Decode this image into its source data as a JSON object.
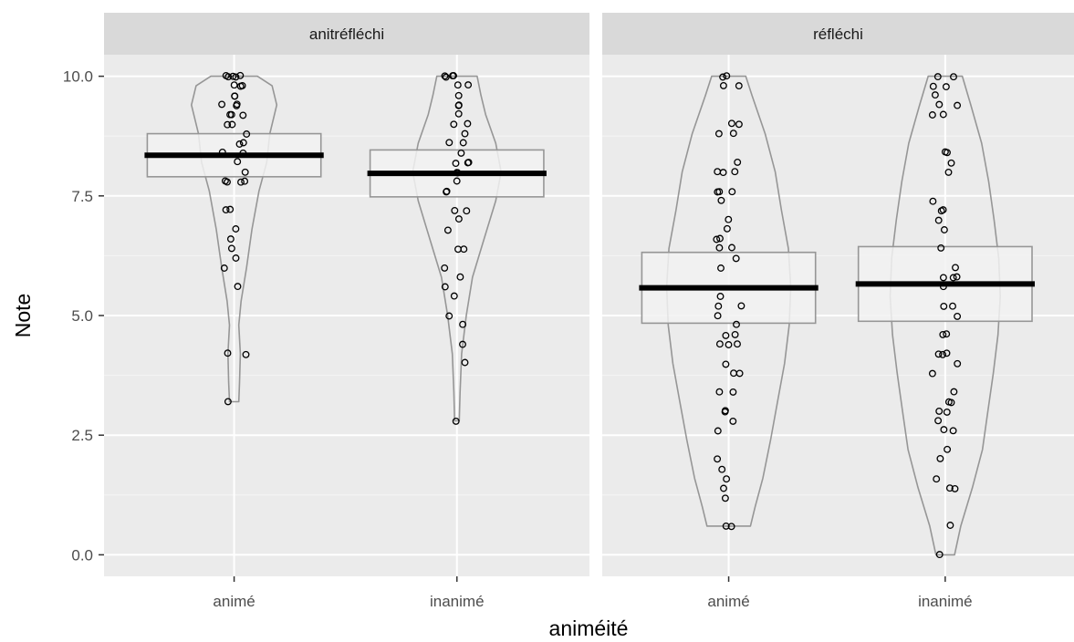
{
  "chart_data": {
    "type": "violin",
    "facets": [
      "anitréfléchi",
      "réfléchi"
    ],
    "categories": [
      "animé",
      "inanimé"
    ],
    "xlabel": "animéité",
    "ylabel": "Note",
    "ylim": [
      -0.45,
      10.45
    ],
    "y_ticks": [
      0.0,
      2.5,
      5.0,
      7.5,
      10.0
    ],
    "y_tick_labels": [
      "0.0",
      "2.5",
      "5.0",
      "7.5",
      "10.0"
    ],
    "grid": true,
    "colors": {
      "panel_bg": "#EBEBEB",
      "strip_bg": "#D9D9D9",
      "violin_outline": "#969696",
      "box_fill": "#F2F2F2",
      "mean_line": "#000000",
      "point_outline": "#000000",
      "text": "#4D4D4D"
    },
    "groups": [
      {
        "facet": "anitréfléchi",
        "category": "animé",
        "mean": 8.35,
        "ci": [
          7.9,
          8.8
        ],
        "violin_profile": [
          [
            3.2,
            0.06
          ],
          [
            3.6,
            0.07
          ],
          [
            4.2,
            0.08
          ],
          [
            4.8,
            0.06
          ],
          [
            5.3,
            0.09
          ],
          [
            6.0,
            0.16
          ],
          [
            6.8,
            0.23
          ],
          [
            7.6,
            0.32
          ],
          [
            8.2,
            0.42
          ],
          [
            8.8,
            0.46
          ],
          [
            9.4,
            0.55
          ],
          [
            9.8,
            0.49
          ],
          [
            10.0,
            0.3
          ]
        ],
        "points": [
          10.0,
          10.0,
          10.0,
          10.0,
          10.0,
          9.8,
          9.8,
          9.8,
          9.6,
          9.6,
          9.4,
          9.4,
          9.4,
          9.2,
          9.2,
          9.2,
          9.0,
          9.0,
          8.8,
          8.6,
          8.6,
          8.4,
          8.4,
          8.2,
          8.0,
          7.8,
          7.8,
          7.8,
          7.8,
          7.2,
          7.2,
          6.8,
          6.6,
          6.4,
          6.2,
          6.0,
          5.6,
          4.2,
          4.2,
          3.2
        ]
      },
      {
        "facet": "anitréfléchi",
        "category": "inanimé",
        "mean": 7.97,
        "ci": [
          7.48,
          8.46
        ],
        "violin_profile": [
          [
            2.8,
            0.03
          ],
          [
            3.4,
            0.04
          ],
          [
            4.2,
            0.06
          ],
          [
            5.0,
            0.12
          ],
          [
            5.8,
            0.2
          ],
          [
            6.6,
            0.35
          ],
          [
            7.4,
            0.5
          ],
          [
            8.0,
            0.57
          ],
          [
            8.6,
            0.5
          ],
          [
            9.2,
            0.37
          ],
          [
            9.6,
            0.31
          ],
          [
            10.0,
            0.26
          ]
        ],
        "points": [
          10.0,
          10.0,
          10.0,
          10.0,
          9.8,
          9.8,
          9.6,
          9.4,
          9.4,
          9.2,
          9.0,
          9.0,
          8.8,
          8.6,
          8.6,
          8.4,
          8.2,
          8.2,
          8.2,
          8.0,
          8.0,
          7.8,
          7.6,
          7.6,
          7.2,
          7.2,
          7.0,
          6.8,
          6.4,
          6.4,
          6.0,
          5.8,
          5.6,
          5.4,
          5.0,
          4.8,
          4.4,
          4.0,
          2.8
        ]
      },
      {
        "facet": "réfléchi",
        "category": "animé",
        "mean": 5.58,
        "ci": [
          4.84,
          6.32
        ],
        "violin_profile": [
          [
            0.6,
            0.28
          ],
          [
            1.0,
            0.34
          ],
          [
            1.6,
            0.44
          ],
          [
            2.4,
            0.54
          ],
          [
            3.2,
            0.63
          ],
          [
            4.0,
            0.72
          ],
          [
            4.8,
            0.78
          ],
          [
            5.6,
            0.8
          ],
          [
            6.4,
            0.77
          ],
          [
            7.2,
            0.68
          ],
          [
            8.0,
            0.6
          ],
          [
            8.8,
            0.47
          ],
          [
            9.6,
            0.3
          ],
          [
            10.0,
            0.22
          ]
        ],
        "points": [
          10.0,
          10.0,
          9.8,
          9.8,
          9.0,
          9.0,
          8.8,
          8.8,
          8.2,
          8.0,
          8.0,
          8.0,
          7.6,
          7.6,
          7.6,
          7.4,
          7.0,
          6.8,
          6.6,
          6.6,
          6.4,
          6.4,
          6.2,
          6.0,
          5.4,
          5.2,
          5.2,
          5.0,
          4.8,
          4.6,
          4.6,
          4.4,
          4.4,
          4.4,
          4.0,
          3.8,
          3.8,
          3.4,
          3.4,
          3.0,
          3.0,
          2.8,
          2.6,
          2.0,
          1.8,
          1.6,
          1.4,
          1.2,
          0.6,
          0.6
        ]
      },
      {
        "facet": "réfléchi",
        "category": "inanimé",
        "mean": 5.66,
        "ci": [
          4.88,
          6.44
        ],
        "violin_profile": [
          [
            0.0,
            0.12
          ],
          [
            0.6,
            0.2
          ],
          [
            1.4,
            0.35
          ],
          [
            2.2,
            0.48
          ],
          [
            3.0,
            0.55
          ],
          [
            3.8,
            0.62
          ],
          [
            4.6,
            0.68
          ],
          [
            5.4,
            0.71
          ],
          [
            6.2,
            0.69
          ],
          [
            7.0,
            0.63
          ],
          [
            7.8,
            0.56
          ],
          [
            8.6,
            0.47
          ],
          [
            9.4,
            0.33
          ],
          [
            10.0,
            0.22
          ]
        ],
        "points": [
          10.0,
          10.0,
          9.8,
          9.8,
          9.6,
          9.4,
          9.4,
          9.2,
          9.2,
          8.4,
          8.4,
          8.2,
          8.0,
          7.4,
          7.2,
          7.2,
          7.0,
          6.8,
          6.4,
          6.0,
          5.8,
          5.8,
          5.8,
          5.6,
          5.2,
          5.2,
          5.0,
          4.6,
          4.6,
          4.2,
          4.2,
          4.2,
          4.0,
          3.8,
          3.4,
          3.2,
          3.2,
          3.0,
          3.0,
          2.8,
          2.6,
          2.6,
          2.2,
          2.0,
          1.6,
          1.4,
          1.4,
          0.6,
          0.0
        ]
      }
    ]
  }
}
